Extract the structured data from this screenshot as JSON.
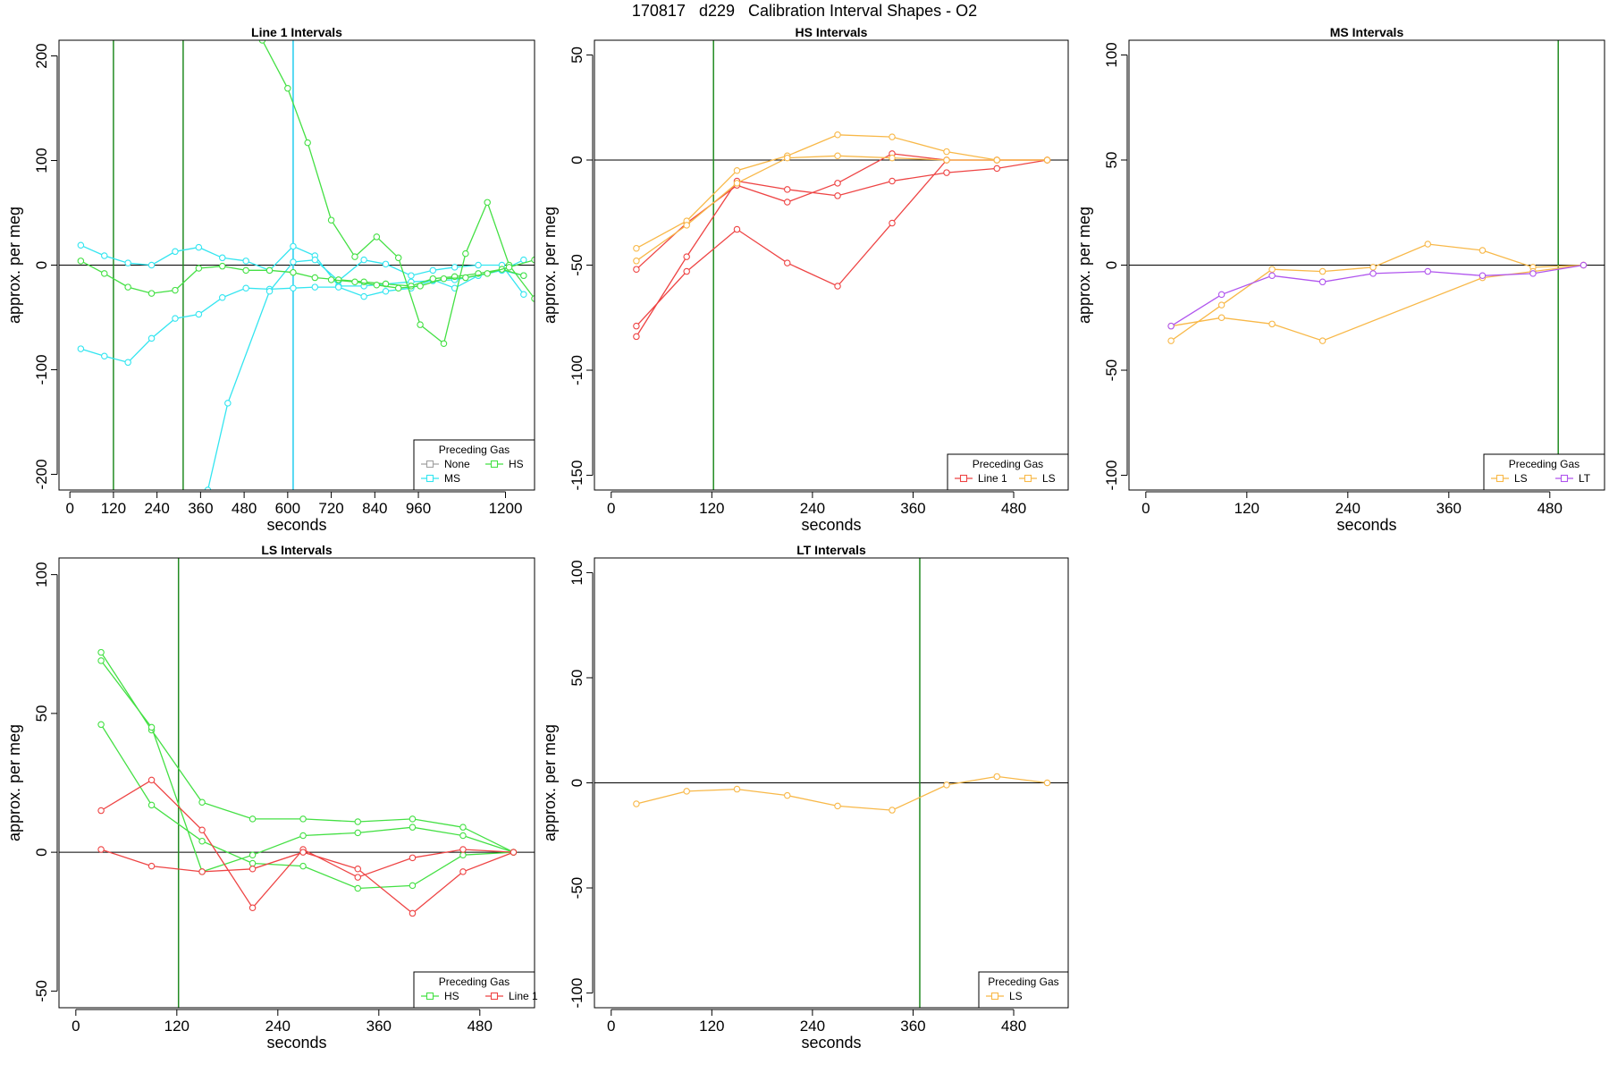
{
  "page": {
    "title": "170817   d229   Calibration Interval Shapes - O2"
  },
  "colors": {
    "None": "#a0a0a0",
    "MS": "#33e5f0",
    "HS": "#44e044",
    "Line 1": "#ee4444",
    "LS": "#f8b848",
    "LT": "#b055ee",
    "vline_green": "#228b22",
    "vline_cyan": "#22ccee",
    "axis": "#000000"
  },
  "chart_data": [
    {
      "type": "line",
      "title": "Line 1 Intervals",
      "xlabel": "seconds",
      "ylabel": "approx. per meg",
      "xlim": [
        -30,
        1280
      ],
      "ylim": [
        -215,
        215
      ],
      "xticks": [
        0,
        120,
        240,
        360,
        480,
        600,
        720,
        840,
        960,
        1200
      ],
      "yticks": [
        -200,
        -100,
        0,
        100,
        200
      ],
      "vlines": [
        {
          "x": 120,
          "color": "vline_green"
        },
        {
          "x": 312,
          "color": "vline_green"
        },
        {
          "x": 615,
          "color": "vline_cyan"
        }
      ],
      "legend": {
        "title": "Preceding Gas",
        "position": "bottom-right",
        "entries": [
          "None",
          "HS",
          "MS"
        ]
      },
      "series": [
        {
          "name": "MS",
          "x": [
            30,
            95,
            160,
            225,
            290,
            355,
            420,
            485,
            550,
            615,
            675,
            740,
            810,
            870,
            940,
            1000,
            1060,
            1125,
            1190,
            1250
          ],
          "y": [
            19,
            9,
            2,
            0,
            13,
            17,
            7,
            4,
            -5,
            18,
            9,
            -20,
            -20,
            -18,
            -16,
            -15,
            -14,
            -10,
            -5,
            5
          ]
        },
        {
          "name": "MS",
          "x": [
            30,
            95,
            160,
            225,
            290,
            355,
            420,
            485,
            550,
            615,
            675,
            740,
            810,
            870,
            940,
            1000,
            1060,
            1125,
            1190,
            1250
          ],
          "y": [
            -80,
            -87,
            -93,
            -70,
            -51,
            -47,
            -31,
            -22,
            -23,
            -22,
            -21,
            -21,
            -30,
            -25,
            -22,
            -14,
            -22,
            -10,
            -5,
            -10
          ]
        },
        {
          "name": "MS",
          "x": [
            380,
            435,
            550,
            615,
            675,
            740,
            810,
            870,
            940,
            1000,
            1060,
            1125,
            1190,
            1250
          ],
          "y": [
            -215,
            -132,
            -25,
            3,
            5,
            -15,
            5,
            1,
            -10,
            -5,
            -2,
            0,
            0,
            -28
          ]
        },
        {
          "name": "HS",
          "x": [
            30,
            95,
            160,
            225,
            290,
            355,
            420,
            485,
            550,
            615,
            675,
            740,
            810,
            870,
            940,
            1000,
            1060,
            1125,
            1190,
            1250
          ],
          "y": [
            4,
            -8,
            -21,
            -27,
            -24,
            -3,
            -1,
            -5,
            -5,
            -7,
            -12,
            -14,
            -16,
            -18,
            -20,
            -13,
            -11,
            -8,
            -4,
            -10
          ]
        },
        {
          "name": "HS",
          "x": [
            530,
            600,
            655,
            720,
            785,
            845,
            905,
            965,
            1030,
            1090,
            1150,
            1210,
            1280
          ],
          "y": [
            215,
            169,
            117,
            43,
            8,
            27,
            7,
            -57,
            -75,
            11,
            60,
            0,
            -32
          ]
        },
        {
          "name": "HS",
          "x": [
            720,
            785,
            845,
            905,
            965,
            1030,
            1090,
            1150,
            1210,
            1280
          ],
          "y": [
            -14,
            -16,
            -19,
            -22,
            -20,
            -13,
            -12,
            -8,
            -2,
            5
          ]
        }
      ]
    },
    {
      "type": "line",
      "title": "HS Intervals",
      "xlabel": "seconds",
      "ylabel": "approx. per meg",
      "xlim": [
        -20,
        545
      ],
      "ylim": [
        -157,
        57
      ],
      "xticks": [
        0,
        120,
        240,
        360,
        480
      ],
      "yticks": [
        -150,
        -100,
        -50,
        0,
        50
      ],
      "vlines": [
        {
          "x": 122,
          "color": "vline_green"
        }
      ],
      "legend": {
        "title": "Preceding Gas",
        "position": "bottom-right",
        "entries": [
          "Line 1",
          "LS"
        ]
      },
      "series": [
        {
          "name": "Line 1",
          "x": [
            30,
            90,
            150,
            210,
            270,
            335,
            400,
            460,
            520
          ],
          "y": [
            -84,
            -46,
            -10,
            -14,
            -17,
            -10,
            -6,
            -4,
            0
          ]
        },
        {
          "name": "Line 1",
          "x": [
            30,
            90,
            150,
            210,
            270,
            335,
            400,
            460,
            520
          ],
          "y": [
            -79,
            -53,
            -33,
            -49,
            -60,
            -30,
            0,
            0,
            0
          ]
        },
        {
          "name": "Line 1",
          "x": [
            30,
            90,
            150,
            210,
            270,
            335,
            400,
            460,
            520
          ],
          "y": [
            -52,
            -30,
            -12,
            -20,
            -11,
            3,
            0,
            0,
            0
          ]
        },
        {
          "name": "LS",
          "x": [
            30,
            90,
            150,
            210,
            270,
            335,
            400,
            460,
            520
          ],
          "y": [
            -42,
            -29,
            -5,
            2,
            12,
            11,
            4,
            0,
            0
          ]
        },
        {
          "name": "LS",
          "x": [
            30,
            90,
            150,
            210,
            270,
            335,
            400,
            460,
            520
          ],
          "y": [
            -48,
            -31,
            -11,
            1,
            2,
            1,
            0,
            0,
            0
          ]
        }
      ]
    },
    {
      "type": "line",
      "title": "MS Intervals",
      "xlabel": "seconds",
      "ylabel": "approx. per meg",
      "xlim": [
        -20,
        545
      ],
      "ylim": [
        -107,
        107
      ],
      "xticks": [
        0,
        120,
        240,
        360,
        480
      ],
      "yticks": [
        -100,
        -50,
        0,
        50,
        100
      ],
      "vlines": [
        {
          "x": 490,
          "color": "vline_green"
        }
      ],
      "legend": {
        "title": "Preceding Gas",
        "position": "bottom-right",
        "entries": [
          "LS",
          "LT"
        ]
      },
      "series": [
        {
          "name": "LS",
          "x": [
            30,
            90,
            150,
            210,
            270,
            335,
            400,
            460,
            520
          ],
          "y": [
            -36,
            -19,
            -2,
            -3,
            -1,
            10,
            7,
            -1,
            0
          ]
        },
        {
          "name": "LS",
          "x": [
            30,
            90,
            150,
            210,
            400,
            460,
            520
          ],
          "y": [
            -29,
            -25,
            -28,
            -36,
            -6,
            -3,
            0
          ]
        },
        {
          "name": "LT",
          "x": [
            30,
            90,
            150,
            210,
            270,
            335,
            400,
            460,
            520
          ],
          "y": [
            -29,
            -14,
            -5,
            -8,
            -4,
            -3,
            -5,
            -4,
            0
          ]
        }
      ]
    },
    {
      "type": "line",
      "title": "LS Intervals",
      "xlabel": "seconds",
      "ylabel": "approx. per meg",
      "xlim": [
        -20,
        545
      ],
      "ylim": [
        -56,
        106
      ],
      "xticks": [
        0,
        120,
        240,
        360,
        480
      ],
      "yticks": [
        -50,
        0,
        50,
        100
      ],
      "vlines": [
        {
          "x": 122,
          "color": "vline_green"
        }
      ],
      "legend": {
        "title": "Preceding Gas",
        "position": "bottom-right",
        "entries": [
          "HS",
          "Line 1"
        ]
      },
      "series": [
        {
          "name": "HS",
          "x": [
            30,
            90,
            150,
            210,
            270,
            335,
            400,
            460,
            520
          ],
          "y": [
            72,
            44,
            18,
            12,
            12,
            11,
            12,
            9,
            0
          ]
        },
        {
          "name": "HS",
          "x": [
            30,
            90,
            150,
            210,
            270,
            335,
            400,
            460,
            520
          ],
          "y": [
            69,
            45,
            -7,
            -1,
            6,
            7,
            9,
            6,
            0
          ]
        },
        {
          "name": "HS",
          "x": [
            30,
            90,
            150,
            210,
            270,
            335,
            400,
            460,
            520
          ],
          "y": [
            46,
            17,
            4,
            -4,
            -5,
            -13,
            -12,
            -1,
            0
          ]
        },
        {
          "name": "Line 1",
          "x": [
            30,
            90,
            150,
            210,
            270,
            335,
            400,
            460,
            520
          ],
          "y": [
            15,
            26,
            8,
            -20,
            1,
            -9,
            -2,
            1,
            0
          ]
        },
        {
          "name": "Line 1",
          "x": [
            30,
            90,
            150,
            210,
            270,
            335,
            400,
            460,
            520
          ],
          "y": [
            1,
            -5,
            -7,
            -6,
            0,
            -6,
            -22,
            -7,
            0
          ]
        }
      ]
    },
    {
      "type": "line",
      "title": "LT Intervals",
      "xlabel": "seconds",
      "ylabel": "approx. per meg",
      "xlim": [
        -20,
        545
      ],
      "ylim": [
        -107,
        107
      ],
      "xticks": [
        0,
        120,
        240,
        360,
        480
      ],
      "yticks": [
        -100,
        -50,
        0,
        50,
        100
      ],
      "vlines": [
        {
          "x": 368,
          "color": "vline_green"
        }
      ],
      "legend": {
        "title": "Preceding Gas",
        "position": "bottom-right",
        "entries": [
          "LS"
        ]
      },
      "series": [
        {
          "name": "LS",
          "x": [
            30,
            90,
            150,
            210,
            270,
            335,
            400,
            460,
            520
          ],
          "y": [
            -10,
            -4,
            -3,
            -6,
            -11,
            -13,
            -1,
            3,
            0
          ]
        }
      ]
    }
  ]
}
